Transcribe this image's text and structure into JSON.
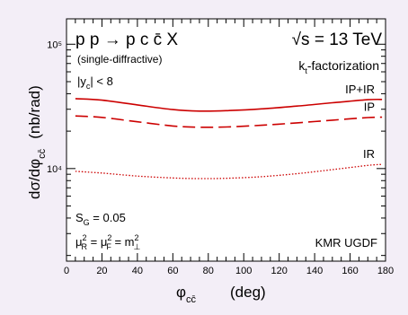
{
  "chart_data": {
    "type": "line",
    "xlabel": "φ",
    "xlabel_sub": "cc̄",
    "xlabel_unit": "(deg)",
    "ylabel": "dσ/dφ",
    "ylabel_sub": "cc̄",
    "ylabel_unit": "(nb/rad)",
    "xlim": [
      0,
      180
    ],
    "ylim": [
      1800,
      160000
    ],
    "yscale": "log",
    "x_ticks": [
      0,
      20,
      40,
      60,
      80,
      100,
      120,
      140,
      160,
      180
    ],
    "x_tick_labels": [
      "0",
      "20",
      "40",
      "60",
      "80",
      "100",
      "120",
      "140",
      "160",
      "180"
    ],
    "y_ticks": [
      10000,
      100000
    ],
    "y_tick_labels": [
      "10⁴",
      "10⁵"
    ],
    "grid": false,
    "series": [
      {
        "name": "IP+IR",
        "style": "solid",
        "color": "#cc0000",
        "x": [
          5,
          20,
          40,
          60,
          75,
          90,
          110,
          130,
          150,
          170,
          178
        ],
        "values": [
          36500,
          35500,
          32500,
          29800,
          29000,
          29200,
          30200,
          31800,
          33800,
          35800,
          36000
        ]
      },
      {
        "name": "IP",
        "style": "dashed",
        "color": "#cc0000",
        "x": [
          5,
          20,
          40,
          60,
          75,
          90,
          110,
          130,
          150,
          170,
          178
        ],
        "values": [
          26500,
          25800,
          23800,
          22000,
          21500,
          21600,
          22300,
          23300,
          24500,
          25700,
          25900
        ]
      },
      {
        "name": "IR",
        "style": "dotted",
        "color": "#cc0000",
        "x": [
          5,
          20,
          40,
          60,
          75,
          90,
          110,
          130,
          150,
          170,
          178
        ],
        "values": [
          9500,
          9200,
          8700,
          8400,
          8300,
          8350,
          8600,
          9100,
          9800,
          10600,
          10800
        ]
      }
    ],
    "annotations": {
      "process": "p p → p c c̄ X",
      "energy": "√s = 13 TeV",
      "kt": "k",
      "kt_sub": "t",
      "kt_rest": "-factorization",
      "mode": "(single-diffractive)",
      "cut": "|y",
      "cut_sub": "c",
      "cut_rest": "| < 8",
      "sg": "S",
      "sg_sub": "G",
      "sg_rest": " = 0.05",
      "mu_r": "μ",
      "mu_r_sup": "2",
      "mu_r_sub": "R",
      "mu_f": " = μ",
      "mu_f_sup": "2",
      "mu_f_sub": "F",
      "mt": " = m",
      "mt_sup": "2",
      "mt_sub": "⊥",
      "ugdf": "KMR UGDF"
    }
  }
}
